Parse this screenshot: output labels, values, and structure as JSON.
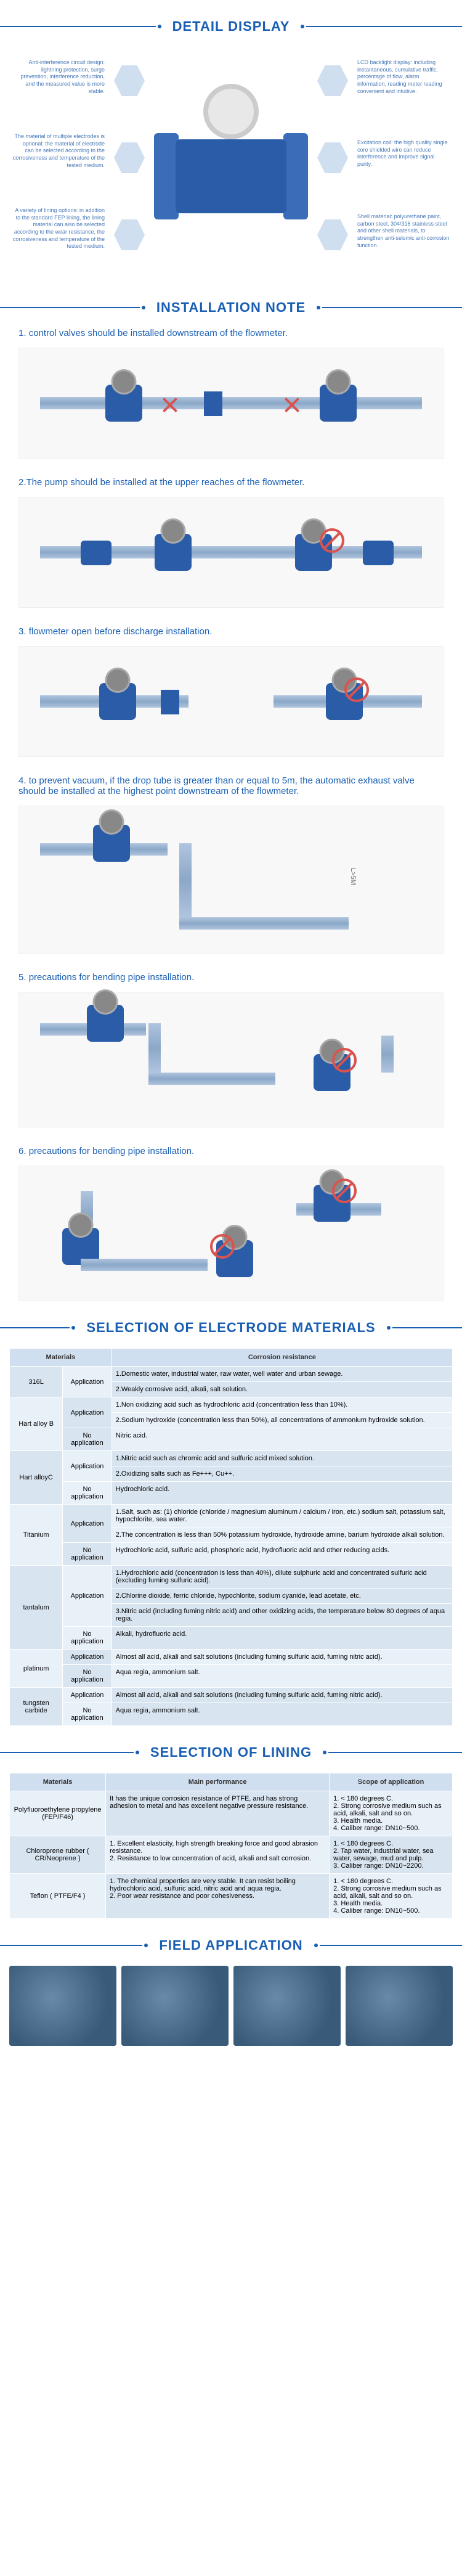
{
  "colors": {
    "primary": "#1a5fb4",
    "device_blue": "#2a5ca8",
    "hex_bg": "#d0dff0",
    "callout_text": "#4a7ab8",
    "table_header": "#d0dff0",
    "table_cell": "#e8f0f8",
    "table_cell_alt": "#d8e4f0",
    "red": "#d9534f"
  },
  "sections": {
    "detail": "DETAIL DISPLAY",
    "install": "INSTALLATION NOTE",
    "electrode": "SELECTION OF ELECTRODE MATERIALS",
    "lining": "SELECTION OF LINING",
    "field": "FIELD APPLICATION"
  },
  "detail_callouts": [
    {
      "pos": "tl",
      "text": "Anti-interference circuit design: lightning protection, surge prevention, interference reduction, and the measured value is more stable."
    },
    {
      "pos": "tr",
      "text": "LCD backlight display: including instantaneous, cumulative traffic, percentage of flow, alarm information, reading meter reading convenient and intuitive."
    },
    {
      "pos": "ml",
      "text": "The material of multiple electrodes is optional: the material of electrode can be selected according to the corrosiveness and temperature of the tested medium."
    },
    {
      "pos": "mr",
      "text": "Excitation coil: the high quality single core shielded wire can reduce interference and improve signal purity."
    },
    {
      "pos": "bl",
      "text": "A variety of lining options: in addition to the standard FEP lining, the lining material can also be selected according to the wear resistance, the corrosiveness and temperature of the tested medium."
    },
    {
      "pos": "br",
      "text": "Shell material: polyurethane paint, carbon steel, 304/316 stainless steel and other shell materials, to strengthen anti-seismic anti-corrosion function."
    }
  ],
  "install_notes": [
    {
      "num": "1.",
      "text": "control valves should be installed downstream of the flowmeter."
    },
    {
      "num": "2.",
      "text": "The pump should be installed at the upper reaches of the flowmeter."
    },
    {
      "num": "3.",
      "text": "flowmeter open before discharge installation."
    },
    {
      "num": "4.",
      "text": "to prevent vacuum, if the drop tube is greater than or equal to 5m, the automatic exhaust valve should be installed at the highest point downstream of the flowmeter."
    },
    {
      "num": "5.",
      "text": "precautions for bending pipe installation."
    },
    {
      "num": "6.",
      "text": "precautions for bending pipe installation."
    }
  ],
  "electrode_table": {
    "headers": [
      "Materials",
      "",
      "Corrosion resistance"
    ],
    "rows": [
      {
        "material": "316L",
        "app_label": "Application",
        "apps": [
          "1.Domestic water, industrial water, raw water, well water and urban sewage.",
          "2.Weakly corrosive acid, alkali, salt solution."
        ],
        "noapp_label": "",
        "noapps": []
      },
      {
        "material": "Hart alloy B",
        "app_label": "Application",
        "apps": [
          "1.Non oxidizing acid such as hydrochloric acid (concentration less than 10%).",
          "2.Sodium hydroxide (concentration less than 50%), all concentrations of ammonium hydroxide solution."
        ],
        "noapp_label": "No application",
        "noapps": [
          "Nitric acid."
        ]
      },
      {
        "material": "Hart alloyC",
        "app_label": "Application",
        "apps": [
          "1.Nitric acid such as chromic acid and sulfuric acid mixed solution.",
          "2.Oxidizing salts such as Fe+++, Cu++."
        ],
        "noapp_label": "No application",
        "noapps": [
          "Hydrochloric acid."
        ]
      },
      {
        "material": "Titanium",
        "app_label": "Application",
        "apps": [
          "1.Salt, such as: (1) chloride (chloride / magnesium aluminum / calcium / iron, etc.) sodium salt, potassium salt, hypochlorite, sea water.",
          "2.The concentration is less than 50% potassium hydroxide, hydroxide amine, barium hydroxide alkali solution."
        ],
        "noapp_label": "No application",
        "noapps": [
          "Hydrochloric acid, sulfuric acid, phosphoric acid, hydrofluoric acid and other reducing acids."
        ]
      },
      {
        "material": "tantalum",
        "app_label": "Application",
        "apps": [
          "1.Hydrochloric acid (concentration is less than 40%), dilute sulphuric acid and concentrated sulfuric acid (excluding fuming sulfuric acid).",
          "2.Chlorine dioxide, ferric chloride, hypochlorite, sodium cyanide, lead acetate, etc.",
          "3.Nitric acid (including fuming nitric acid) and other oxidizing acids, the temperature below 80 degrees of aqua regia."
        ],
        "noapp_label": "No application",
        "noapps": [
          "Alkali, hydrofluoric acid."
        ]
      },
      {
        "material": "platinum",
        "app_label": "Application",
        "apps": [
          "Almost all acid, alkali and salt solutions (including fuming sulfuric acid, fuming nitric acid)."
        ],
        "noapp_label": "No application",
        "noapps": [
          "Aqua regia, ammonium salt."
        ]
      },
      {
        "material": "tungsten carbide",
        "app_label": "Application",
        "apps": [
          "Almost all acid, alkali and salt solutions (including fuming sulfuric acid, fuming nitric acid)."
        ],
        "noapp_label": "No application",
        "noapps": [
          "Aqua regia, ammonium salt."
        ]
      }
    ]
  },
  "lining_table": {
    "headers": [
      "Materials",
      "Main performance",
      "Scope of application"
    ],
    "rows": [
      {
        "material": "Polyfluoroethylene propylene (FEP/F46)",
        "perf": "It has the unique corrosion resistance of PTFE, and has strong adhesion to metal and has excellent negative pressure resistance.",
        "scope": "1. < 180 degrees C.\n2. Strong corrosive medium such as acid, alkali, salt and so on.\n3. Health media.\n4. Caliber range: DN10~500."
      },
      {
        "material": "Chloroprene rubber ( CR/Neoprene )",
        "perf": "1. Excellent elasticity, high strength breaking force and good abrasion resistance.\n2. Resistance to low concentration of acid, alkali and salt corrosion.",
        "scope": "1. < 180 degrees C.\n2. Tap water, industrial water, sea water, sewage, mud and pulp.\n3. Caliber range: DN10~2200."
      },
      {
        "material": "Teflon ( PTFE/F4 )",
        "perf": "1. The chemical properties are very stable. It can resist boiling hydrochloric acid, sulfuric acid, nitric acid and aqua regia.\n2. Poor wear resistance and poor cohesiveness.",
        "scope": "1. < 180 degrees C.\n2. Strong corrosive medium such as acid, alkali, salt and so on.\n3. Health media.\n4. Caliber range: DN10~500."
      }
    ]
  }
}
